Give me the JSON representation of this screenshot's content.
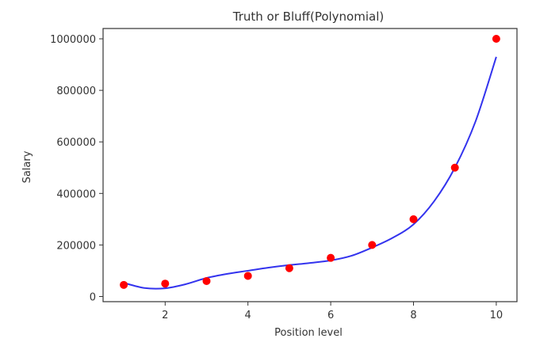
{
  "chart_data": {
    "type": "scatter",
    "title": "Truth or Bluff(Polynomial)",
    "xlabel": "Position level",
    "ylabel": "Salary",
    "xlim": [
      0.5,
      10.5
    ],
    "ylim": [
      -20000,
      1040000
    ],
    "xticks": [
      2,
      4,
      6,
      8,
      10
    ],
    "yticks": [
      0,
      200000,
      400000,
      600000,
      800000,
      1000000
    ],
    "grid": false,
    "series": [
      {
        "type": "scatter",
        "color": "#ff0000",
        "x": [
          1,
          2,
          3,
          4,
          5,
          6,
          7,
          8,
          9,
          10
        ],
        "y": [
          45000,
          50000,
          60000,
          80000,
          110000,
          150000,
          200000,
          300000,
          500000,
          1000000
        ]
      },
      {
        "type": "line",
        "color": "#3333ee",
        "x": [
          1,
          1.5,
          2,
          2.5,
          3,
          3.5,
          4,
          4.5,
          5,
          5.5,
          6,
          6.5,
          7,
          7.5,
          8,
          8.5,
          9,
          9.5,
          10
        ],
        "y": [
          53000,
          33000,
          32000,
          48000,
          72000,
          88000,
          100000,
          112000,
          122000,
          130000,
          140000,
          158000,
          190000,
          228000,
          280000,
          370000,
          500000,
          680000,
          930000
        ]
      }
    ]
  }
}
